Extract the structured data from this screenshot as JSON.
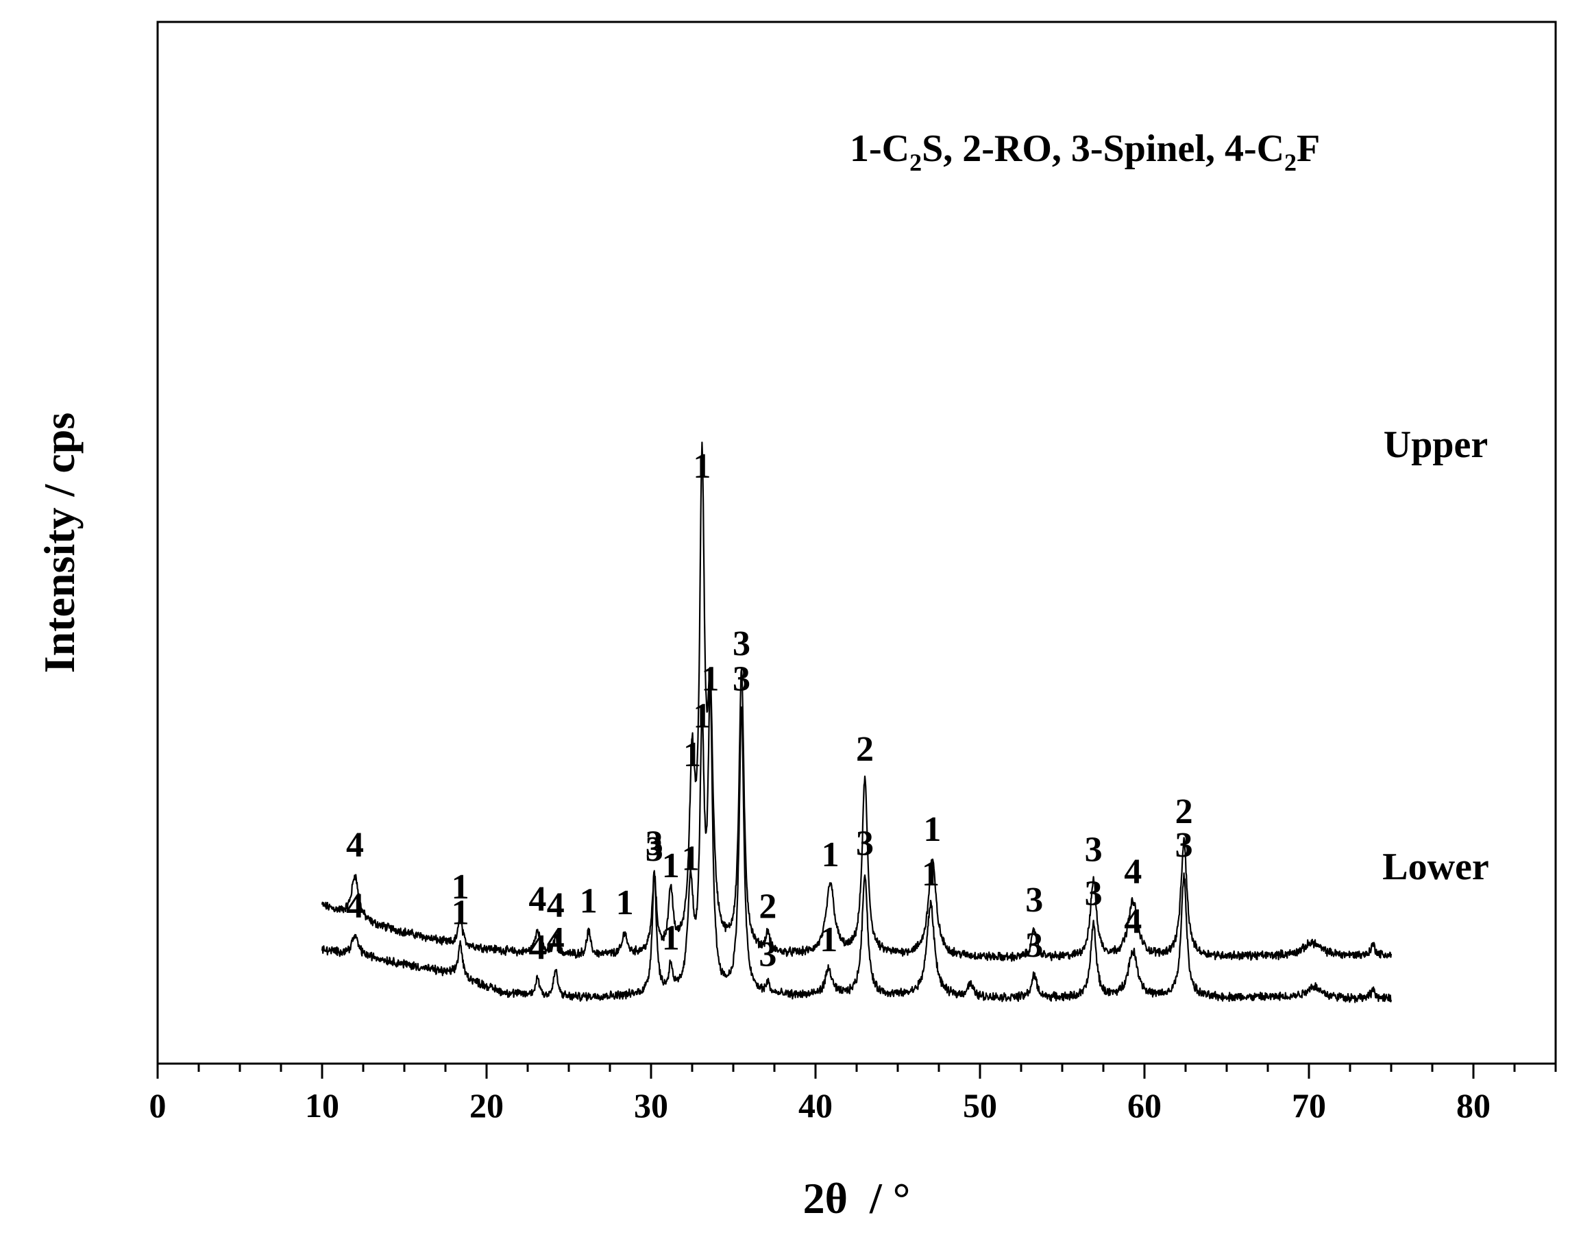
{
  "chart_data": {
    "type": "line",
    "title": "",
    "xlabel": "2θ  / °",
    "ylabel": "Intensity / cps",
    "xlim": [
      0,
      85
    ],
    "x_ticks": [
      0,
      10,
      20,
      30,
      40,
      50,
      60,
      70,
      80
    ],
    "x_minor_step": 2.5,
    "y_tick_labels": false,
    "grid": false,
    "legend": {
      "placement": "top-right",
      "items": [
        {
          "base": "1-C",
          "sub": "2",
          "rest": "S, "
        },
        {
          "base": "2-RO, 3-Spinel, 4-C",
          "sub": "2",
          "rest": "F"
        }
      ]
    },
    "series": [
      {
        "name": "Upper",
        "x_range": [
          10,
          75
        ],
        "baseline": 0.22,
        "background": [
          [
            10,
            0.3
          ],
          [
            13,
            0.2
          ],
          [
            18,
            0.09
          ],
          [
            22,
            0.045
          ],
          [
            26,
            0.03
          ],
          [
            30,
            0.03
          ],
          [
            36,
            0.03
          ],
          [
            40,
            0.03
          ],
          [
            46,
            0.03
          ],
          [
            52,
            0.015
          ],
          [
            60,
            0.02
          ],
          [
            70,
            0.03
          ],
          [
            75,
            0.03
          ]
        ],
        "peaks": [
          {
            "x": 12.0,
            "h": 0.23,
            "w": 0.25,
            "label": "4"
          },
          {
            "x": 18.4,
            "h": 0.15,
            "w": 0.15,
            "label": "1"
          },
          {
            "x": 23.1,
            "h": 0.13,
            "w": 0.18,
            "label": "4"
          },
          {
            "x": 24.2,
            "h": 0.1,
            "w": 0.12,
            "label": "4"
          },
          {
            "x": 26.2,
            "h": 0.13,
            "w": 0.13,
            "label": "1"
          },
          {
            "x": 28.4,
            "h": 0.12,
            "w": 0.15,
            "label": "1"
          },
          {
            "x": 30.2,
            "h": 0.41,
            "w": 0.16,
            "label": "3"
          },
          {
            "x": 31.2,
            "h": 0.32,
            "w": 0.16,
            "label": "1"
          },
          {
            "x": 32.5,
            "h": 0.92,
            "w": 0.2,
            "label": "1"
          },
          {
            "x": 33.1,
            "h": 2.48,
            "w": 0.18,
            "label": "1"
          },
          {
            "x": 33.6,
            "h": 1.22,
            "w": 0.2,
            "label": ""
          },
          {
            "x": 35.5,
            "h": 1.52,
            "w": 0.18,
            "label": "3"
          },
          {
            "x": 37.1,
            "h": 0.1,
            "w": 0.15,
            "label": "2"
          },
          {
            "x": 40.9,
            "h": 0.38,
            "w": 0.3,
            "label": "1"
          },
          {
            "x": 43.0,
            "h": 0.95,
            "w": 0.2,
            "label": "2"
          },
          {
            "x": 47.1,
            "h": 0.52,
            "w": 0.28,
            "label": "1"
          },
          {
            "x": 53.3,
            "h": 0.15,
            "w": 0.2,
            "label": "3"
          },
          {
            "x": 56.9,
            "h": 0.42,
            "w": 0.22,
            "label": "3"
          },
          {
            "x": 59.3,
            "h": 0.3,
            "w": 0.35,
            "label": "4"
          },
          {
            "x": 62.4,
            "h": 0.62,
            "w": 0.22,
            "label": "2"
          },
          {
            "x": 70.2,
            "h": 0.07,
            "w": 0.6,
            "label": ""
          },
          {
            "x": 73.9,
            "h": 0.06,
            "w": 0.15,
            "label": ""
          }
        ]
      },
      {
        "name": "Lower",
        "x_range": [
          10,
          75
        ],
        "baseline": 0.0,
        "background": [
          [
            10,
            0.28
          ],
          [
            13,
            0.24
          ],
          [
            18,
            0.15
          ],
          [
            21,
            0.05
          ],
          [
            24,
            0.02
          ],
          [
            28,
            0.03
          ],
          [
            31,
            0.03
          ],
          [
            38,
            0.03
          ],
          [
            44,
            0.03
          ],
          [
            52,
            0.02
          ],
          [
            60,
            0.02
          ],
          [
            70,
            0.025
          ],
          [
            75,
            0.015
          ]
        ],
        "peaks": [
          {
            "x": 12.0,
            "h": 0.1,
            "w": 0.25,
            "label": "4"
          },
          {
            "x": 18.4,
            "h": 0.18,
            "w": 0.15,
            "label": "1"
          },
          {
            "x": 23.1,
            "h": 0.1,
            "w": 0.15,
            "label": "4"
          },
          {
            "x": 24.2,
            "h": 0.15,
            "w": 0.15,
            "label": "4"
          },
          {
            "x": 30.2,
            "h": 0.66,
            "w": 0.15,
            "label": "3"
          },
          {
            "x": 31.2,
            "h": 0.15,
            "w": 0.13,
            "label": "1"
          },
          {
            "x": 32.4,
            "h": 0.58,
            "w": 0.2,
            "label": "1"
          },
          {
            "x": 33.1,
            "h": 1.35,
            "w": 0.16,
            "label": "1"
          },
          {
            "x": 33.6,
            "h": 1.55,
            "w": 0.16,
            "label": "1"
          },
          {
            "x": 35.5,
            "h": 1.55,
            "w": 0.17,
            "label": "3"
          },
          {
            "x": 37.1,
            "h": 0.06,
            "w": 0.12,
            "label": "3"
          },
          {
            "x": 40.8,
            "h": 0.14,
            "w": 0.25,
            "label": "1"
          },
          {
            "x": 43.0,
            "h": 0.66,
            "w": 0.2,
            "label": "3"
          },
          {
            "x": 47.0,
            "h": 0.5,
            "w": 0.28,
            "label": "1"
          },
          {
            "x": 49.4,
            "h": 0.07,
            "w": 0.2,
            "label": ""
          },
          {
            "x": 53.3,
            "h": 0.12,
            "w": 0.2,
            "label": "3"
          },
          {
            "x": 56.9,
            "h": 0.4,
            "w": 0.2,
            "label": "3"
          },
          {
            "x": 59.3,
            "h": 0.25,
            "w": 0.35,
            "label": "4"
          },
          {
            "x": 62.4,
            "h": 0.66,
            "w": 0.2,
            "label": "3"
          },
          {
            "x": 70.3,
            "h": 0.06,
            "w": 0.5,
            "label": ""
          },
          {
            "x": 73.9,
            "h": 0.05,
            "w": 0.15,
            "label": ""
          }
        ]
      }
    ]
  }
}
